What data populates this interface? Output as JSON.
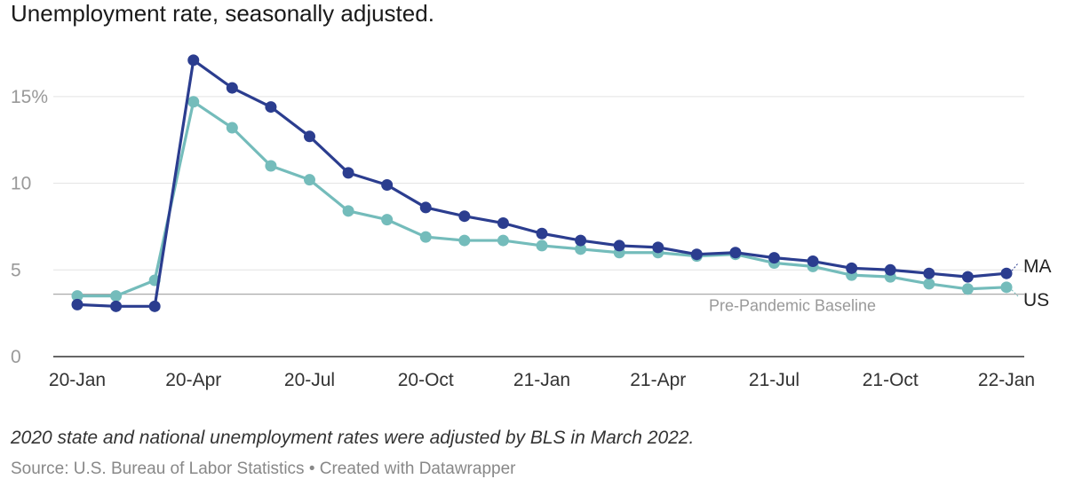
{
  "chart_data": {
    "type": "line",
    "title": "Unemployment rate, seasonally adjusted.",
    "note": "2020 state and national unemployment rates were adjusted by BLS in March 2022.",
    "source": "Source: U.S. Bureau of Labor Statistics • Created with Datawrapper",
    "x_tick_labels": [
      "20-Jan",
      "20-Apr",
      "20-Jul",
      "20-Oct",
      "21-Jan",
      "21-Apr",
      "21-Jul",
      "21-Oct",
      "22-Jan"
    ],
    "y_tick_labels": [
      "0",
      "5",
      "10",
      "15%"
    ],
    "y_ticks": [
      0,
      5,
      10,
      15
    ],
    "ylim": [
      0,
      17.5
    ],
    "grid": true,
    "baseline": {
      "label": "Pre-Pandemic Baseline",
      "value": 3.5
    },
    "x": [
      "2020-01",
      "2020-02",
      "2020-03",
      "2020-04",
      "2020-05",
      "2020-06",
      "2020-07",
      "2020-08",
      "2020-09",
      "2020-10",
      "2020-11",
      "2020-12",
      "2021-01",
      "2021-02",
      "2021-03",
      "2021-04",
      "2021-05",
      "2021-06",
      "2021-07",
      "2021-08",
      "2021-09",
      "2021-10",
      "2021-11",
      "2021-12",
      "2022-01"
    ],
    "series": [
      {
        "name": "MA",
        "color": "#2b3d8f",
        "values": [
          3.0,
          2.9,
          2.9,
          17.1,
          15.5,
          14.4,
          12.7,
          10.6,
          9.9,
          8.6,
          8.1,
          7.7,
          7.1,
          6.7,
          6.4,
          6.3,
          5.9,
          6.0,
          5.7,
          5.5,
          5.1,
          5.0,
          4.8,
          4.6,
          4.8
        ]
      },
      {
        "name": "US",
        "color": "#74bcbb",
        "values": [
          3.5,
          3.5,
          4.4,
          14.7,
          13.2,
          11.0,
          10.2,
          8.4,
          7.9,
          6.9,
          6.7,
          6.7,
          6.4,
          6.2,
          6.0,
          6.0,
          5.8,
          5.9,
          5.4,
          5.2,
          4.7,
          4.6,
          4.2,
          3.9,
          4.0
        ]
      }
    ]
  }
}
